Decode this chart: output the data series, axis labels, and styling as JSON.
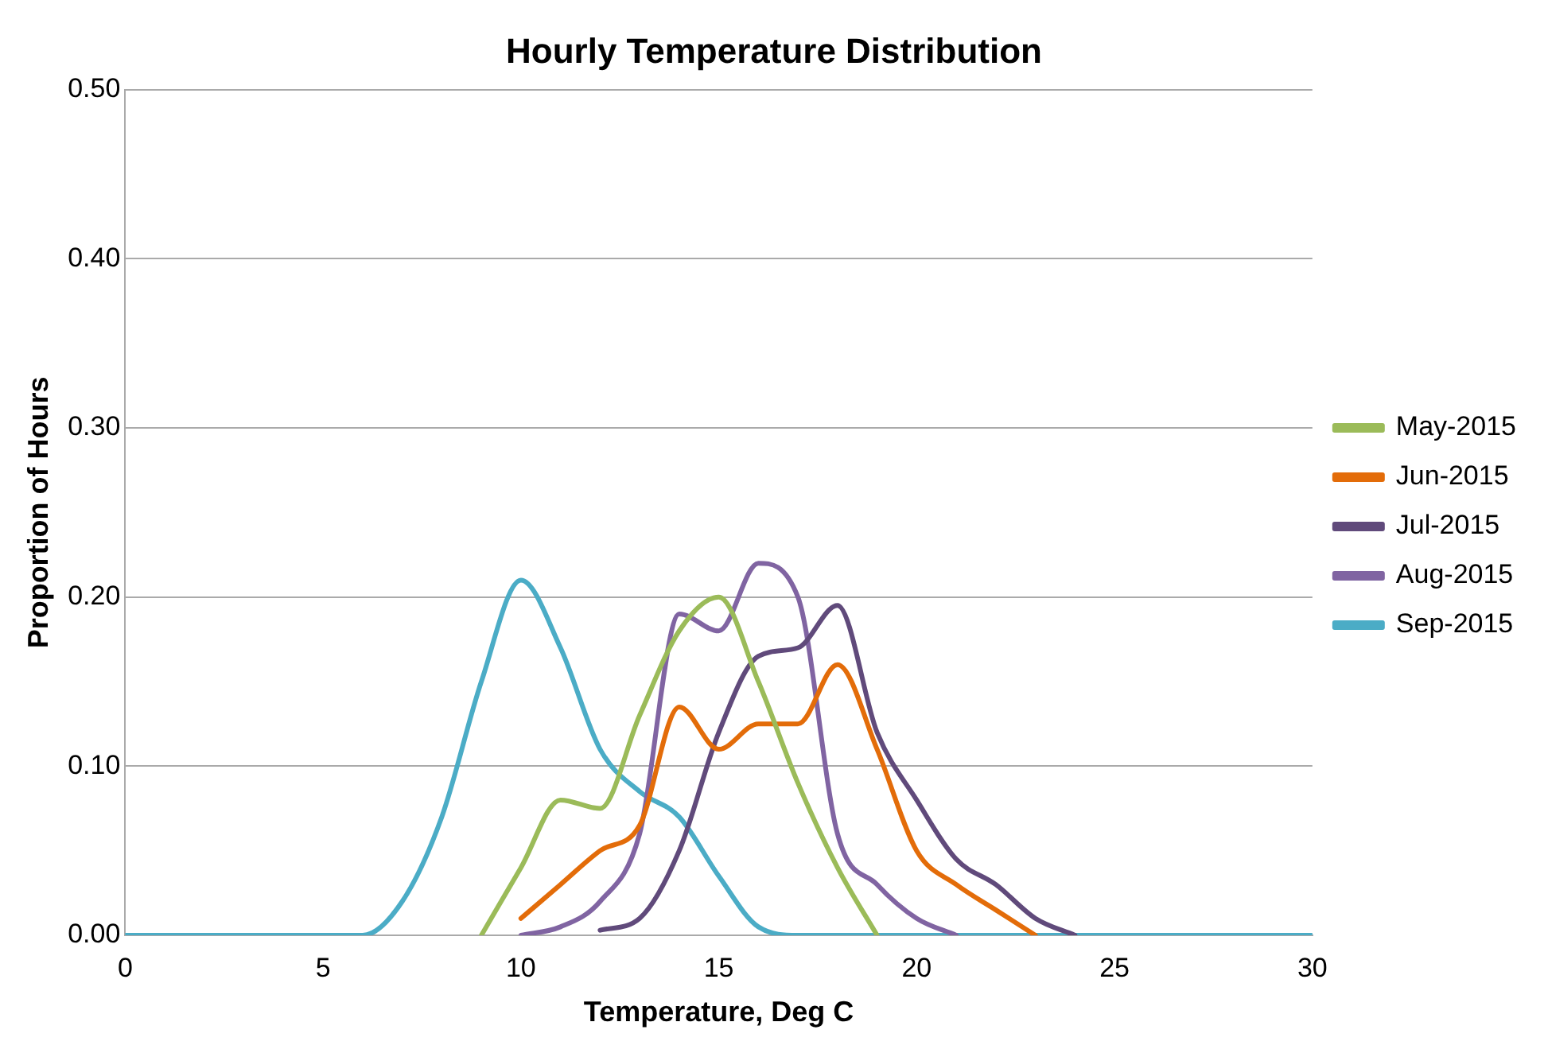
{
  "chart_data": {
    "type": "line",
    "title": "Hourly Temperature Distribution",
    "xlabel": "Temperature, Deg C",
    "ylabel": "Proportion of Hours",
    "x": [
      0,
      1,
      2,
      3,
      4,
      5,
      6,
      7,
      8,
      9,
      10,
      11,
      12,
      13,
      14,
      15,
      16,
      17,
      18,
      19,
      20,
      21,
      22,
      23,
      24,
      25,
      26,
      27,
      28,
      29,
      30
    ],
    "xlim": [
      0,
      30
    ],
    "xticks": [
      0,
      5,
      10,
      15,
      20,
      25,
      30
    ],
    "ylim": [
      0,
      0.5
    ],
    "yticks": [
      {
        "value": 0,
        "label": "0.00"
      },
      {
        "value": 0.1,
        "label": "0.10"
      },
      {
        "value": 0.2,
        "label": "0.20"
      },
      {
        "value": 0.3,
        "label": "0.30"
      },
      {
        "value": 0.4,
        "label": "0.40"
      },
      {
        "value": 0.5,
        "label": "0.50"
      }
    ],
    "grid": "y",
    "legend": "right",
    "marker": "none",
    "line_style": "solid",
    "series": [
      {
        "name": "May-2015",
        "color": "#9bbb59",
        "values": [
          null,
          null,
          null,
          null,
          null,
          null,
          null,
          null,
          null,
          0,
          0.04,
          0.08,
          0.075,
          0.13,
          0.18,
          0.2,
          0.15,
          0.09,
          0.04,
          0,
          null,
          null,
          null,
          null,
          null,
          null,
          null,
          null,
          null,
          null,
          null
        ]
      },
      {
        "name": "Jun-2015",
        "color": "#e36c09",
        "values": [
          null,
          null,
          null,
          null,
          null,
          null,
          null,
          null,
          null,
          null,
          0.01,
          0.03,
          0.05,
          0.065,
          0.135,
          0.11,
          0.125,
          0.125,
          0.16,
          0.11,
          0.05,
          0.03,
          0.015,
          0,
          null,
          null,
          null,
          null,
          null,
          null,
          null
        ]
      },
      {
        "name": "Jul-2015",
        "color": "#604a7b",
        "values": [
          null,
          null,
          null,
          null,
          null,
          null,
          null,
          null,
          null,
          null,
          null,
          null,
          0.003,
          0.01,
          0.05,
          0.12,
          0.165,
          0.17,
          0.195,
          0.12,
          0.08,
          0.045,
          0.03,
          0.01,
          0,
          null,
          null,
          null,
          null,
          null,
          null
        ]
      },
      {
        "name": "Aug-2015",
        "color": "#8064a2",
        "values": [
          null,
          null,
          null,
          null,
          null,
          null,
          null,
          null,
          null,
          null,
          0,
          0.005,
          0.02,
          0.06,
          0.19,
          0.18,
          0.22,
          0.2,
          0.06,
          0.03,
          0.01,
          0,
          null,
          null,
          null,
          null,
          null,
          null,
          null,
          null,
          null
        ]
      },
      {
        "name": "Sep-2015",
        "color": "#4bacc6",
        "values": [
          0,
          0,
          0,
          0,
          0,
          0,
          0,
          0.02,
          0.07,
          0.15,
          0.21,
          0.17,
          0.11,
          0.085,
          0.07,
          0.035,
          0.005,
          0,
          0,
          null,
          0,
          null,
          0,
          null,
          null,
          0,
          0,
          0,
          0,
          0,
          0
        ]
      }
    ]
  }
}
